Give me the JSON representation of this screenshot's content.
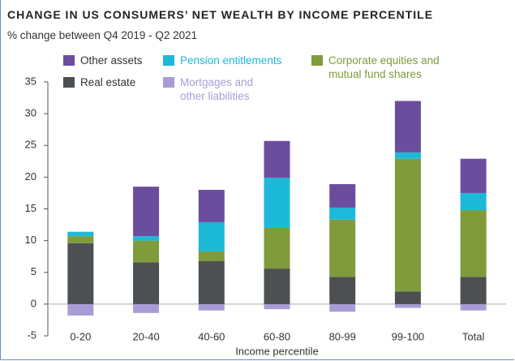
{
  "chart_data": {
    "type": "stacked_bar",
    "title": "CHANGE IN US CONSUMERS’ NET WEALTH BY INCOME PERCENTILE",
    "subtitle": "% change between Q4 2019 - Q2 2021",
    "x_label": "Income percentile",
    "categories": [
      "0-20",
      "20-40",
      "40-60",
      "60-80",
      "80-99",
      "99-100",
      "Total"
    ],
    "series": [
      {
        "name": "Other assets",
        "color": "#6b4d9e",
        "values": [
          0,
          7.8,
          5.1,
          5.8,
          3.7,
          8.1,
          5.4
        ]
      },
      {
        "name": "Pension entitlements",
        "color": "#1cb9d8",
        "values": [
          0.7,
          0.7,
          4.6,
          7.9,
          1.9,
          1.0,
          2.7
        ]
      },
      {
        "name": "Corporate equities and mutual fund shares",
        "color": "#7f9b3b",
        "values": [
          1.1,
          3.4,
          1.5,
          6.4,
          9.0,
          20.9,
          10.5
        ]
      },
      {
        "name": "Real estate",
        "color": "#4d5052",
        "values": [
          9.6,
          6.6,
          6.8,
          5.6,
          4.3,
          2.0,
          4.3
        ]
      },
      {
        "name": "Mortgages and other liabilities",
        "color": "#a99cd6",
        "values": [
          -1.8,
          -1.4,
          -1.0,
          -0.8,
          -1.2,
          -0.6,
          -1.0
        ]
      }
    ],
    "ylim": [
      -5,
      35
    ],
    "yticks": [
      -5,
      0,
      5,
      10,
      15,
      20,
      25,
      30,
      35
    ]
  }
}
